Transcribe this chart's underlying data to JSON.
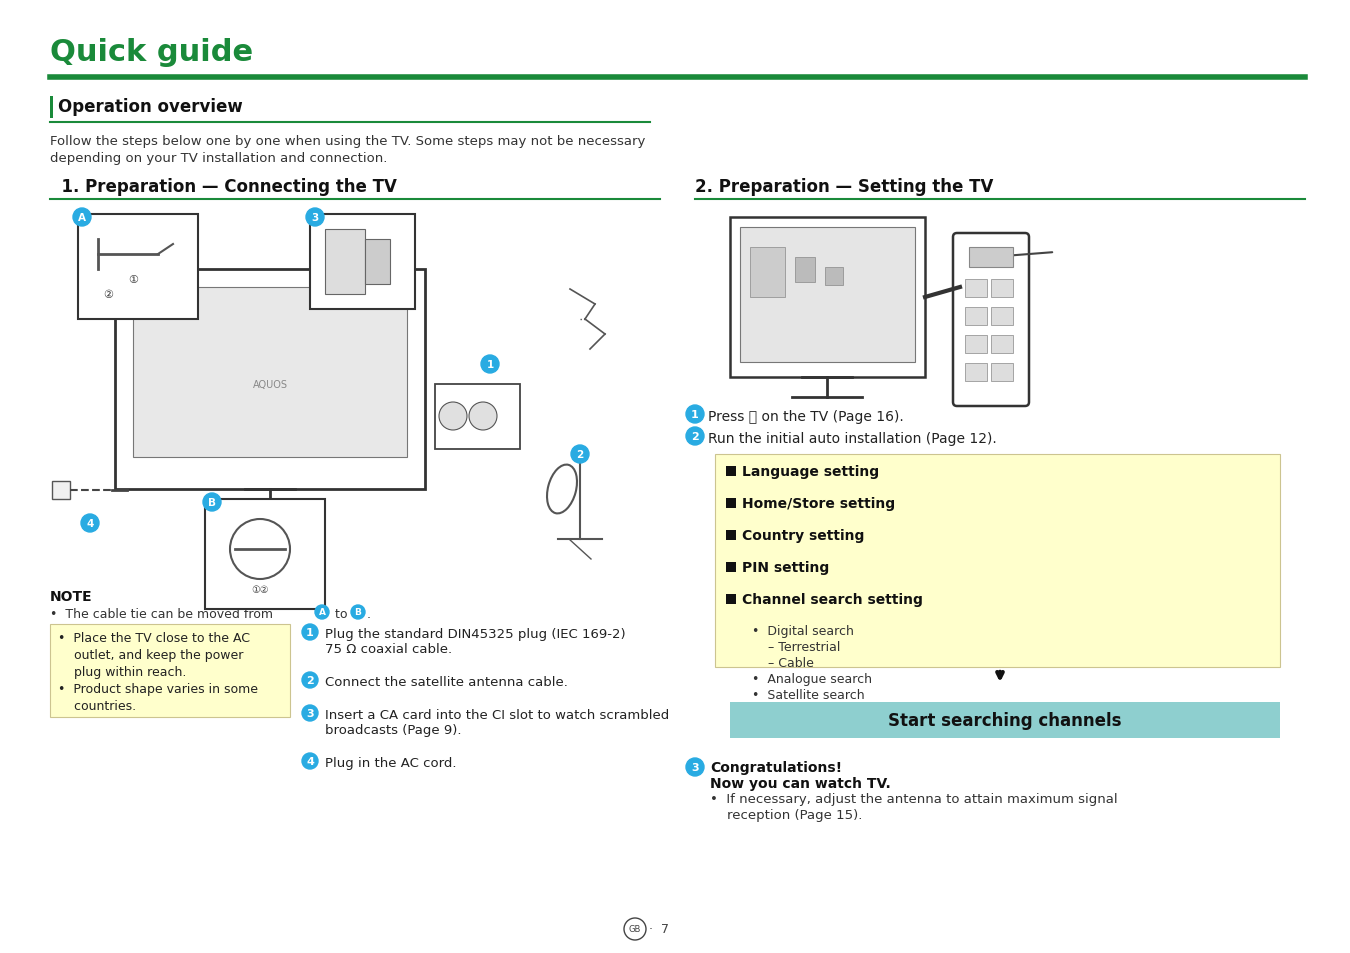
{
  "title": "Quick guide",
  "title_color": "#1a8a3a",
  "green_line_color": "#1a8a3a",
  "bg_color": "#ffffff",
  "yellow_bg": "#ffffcc",
  "teal_bg": "#8ecfcf",
  "blue_circle": "#29abe2",
  "section_left_title": "  1. Preparation — Connecting the TV",
  "section_right_title": "2. Preparation — Setting the TV",
  "follow_line1": "Follow the steps below one by one when using the TV. Some steps may not be necessary",
  "follow_line2": "depending on your TV installation and connection.",
  "note_title": "NOTE",
  "note_text_before": "•  The cable tie can be moved from ",
  "note_text_after": ".",
  "yellow_left_lines": [
    "•  Place the TV close to the AC",
    "    outlet, and keep the power",
    "    plug within reach.",
    "•  Product shape varies in some",
    "    countries."
  ],
  "steps_right": [
    [
      "Plug the standard DIN45325 plug (IEC 169-2)",
      "75 Ω coaxial cable."
    ],
    [
      "Connect the satellite antenna cable."
    ],
    [
      "Insert a CA card into the CI slot to watch scrambled",
      "broadcasts (Page 9)."
    ],
    [
      "Plug in the AC cord."
    ]
  ],
  "press_step1": "Press ⏻ on the TV (Page 16).",
  "press_step2": "Run the initial auto installation (Page 12).",
  "yellow_right_items": [
    "Language setting",
    "Home/Store setting",
    "Country setting",
    "PIN setting",
    "Channel search setting"
  ],
  "yellow_right_subitems": [
    "•  Digital search",
    "    – Terrestrial",
    "    – Cable",
    "•  Analogue search",
    "•  Satellite search"
  ],
  "teal_button_text": "Start searching channels",
  "congrats_title": "Congratulations!",
  "congrats_subtitle": "Now you can watch TV.",
  "congrats_body1": "•  If necessary, adjust the antenna to attain maximum signal",
  "congrats_body2": "    reception (Page 15).",
  "footer_circle_text": "GB",
  "footer_dot_7": "·  7"
}
